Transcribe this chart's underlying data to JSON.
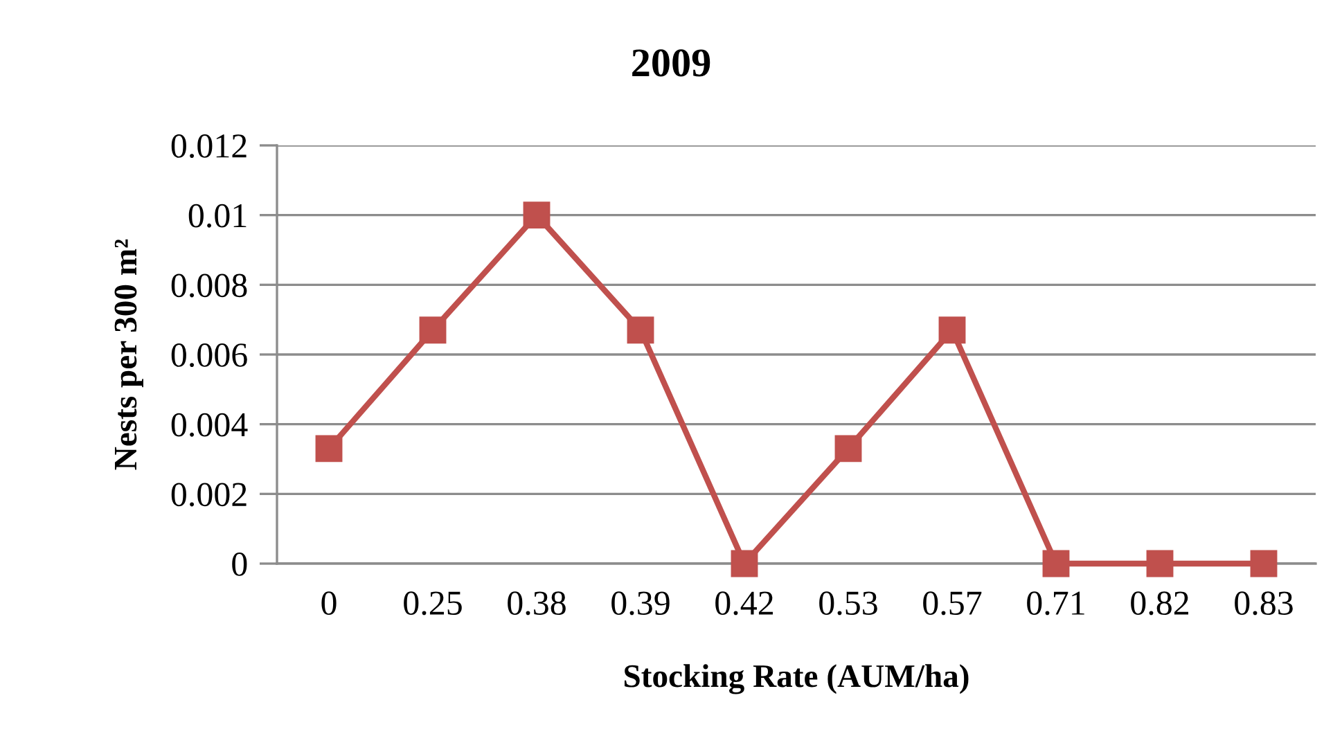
{
  "chart_data": {
    "type": "line",
    "title": "2009",
    "xlabel": "Stocking Rate (AUM/ha)",
    "ylabel": "Nests per 300 m²",
    "categories": [
      "0",
      "0.25",
      "0.38",
      "0.39",
      "0.42",
      "0.53",
      "0.57",
      "0.71",
      "0.82",
      "0.83"
    ],
    "series": [
      {
        "color": "#c0504d",
        "values": [
          0.0033,
          0.0067,
          0.01,
          0.0067,
          0,
          0.0033,
          0.0067,
          0,
          0,
          0
        ]
      }
    ],
    "ylim": [
      0,
      0.012
    ],
    "yticks": [
      0,
      0.002,
      0.004,
      0.006,
      0.008,
      0.01,
      0.012
    ],
    "grid": "y",
    "marker": "square",
    "line_style": "solid"
  }
}
